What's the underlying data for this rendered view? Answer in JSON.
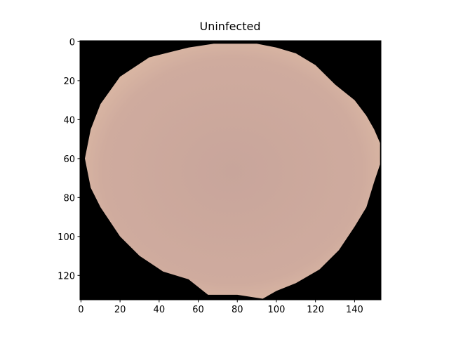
{
  "chart_data": {
    "type": "image",
    "title": "Uninfected",
    "xlim": [
      -0.5,
      153.5
    ],
    "ylim": [
      132.5,
      -0.5
    ],
    "xticks": [
      0,
      20,
      40,
      60,
      80,
      100,
      120,
      140
    ],
    "yticks": [
      0,
      20,
      40,
      60,
      80,
      100,
      120
    ]
  }
}
